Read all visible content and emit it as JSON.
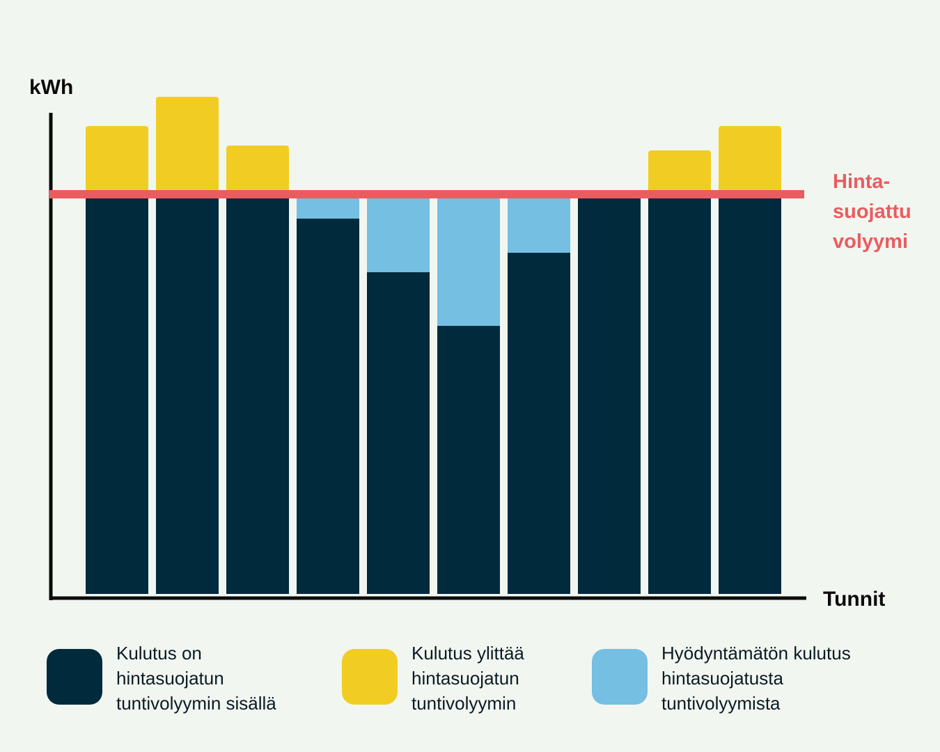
{
  "chart_data": {
    "type": "bar",
    "stacked": true,
    "ylabel": "kWh",
    "xlabel": "Tunnit",
    "ylim": [
      0,
      100
    ],
    "reference_line": {
      "value": 82,
      "label_lines": [
        "Hinta-",
        "suojattu",
        "volyymi"
      ],
      "color": "#ea5c5f"
    },
    "categories": [
      "",
      "",
      "",
      "",
      "",
      "",
      "",
      "",
      "",
      ""
    ],
    "series": [
      {
        "values": [
          82,
          82,
          82,
          77,
          66,
          55,
          70,
          82,
          82,
          82
        ],
        "color": "#022a3d"
      },
      {
        "values": [
          0,
          0,
          0,
          5,
          16,
          27,
          12,
          0,
          0,
          0
        ],
        "color": "#75bfe3"
      },
      {
        "values": [
          14,
          20,
          10,
          0,
          0,
          0,
          0,
          0,
          9,
          14
        ],
        "color": "#f1cd23"
      }
    ],
    "grid": false
  },
  "legend": {
    "items": [
      {
        "color": "#022a3d",
        "lines": [
          "Kulutus on",
          "hintasuojatun",
          "tuntivolyymin sisällä"
        ]
      },
      {
        "color": "#f1cd23",
        "lines": [
          "Kulutus ylittää",
          "hintasuojatun",
          "tuntivolyymin"
        ]
      },
      {
        "color": "#75bfe3",
        "lines": [
          "Hyödyntämätön kulutus",
          "hintasuojatusta",
          "tuntivolyymista"
        ]
      }
    ]
  }
}
